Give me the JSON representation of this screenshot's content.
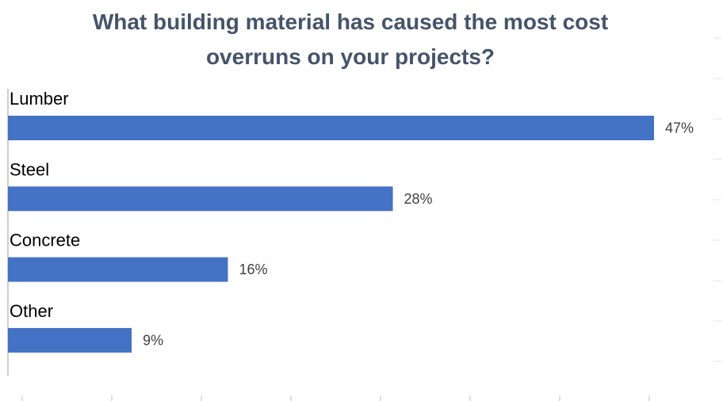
{
  "chart_data": {
    "type": "bar",
    "orientation": "horizontal",
    "title_lines": [
      "What building material has caused the most cost",
      "overruns on your projects?"
    ],
    "categories": [
      "Lumber",
      "Steel",
      "Concrete",
      "Other"
    ],
    "values": [
      47,
      28,
      16,
      9
    ],
    "value_labels": [
      "47%",
      "28%",
      "16%",
      "9%"
    ],
    "unit": "%",
    "xlim": [
      0,
      52
    ],
    "grid": false,
    "legend": "none",
    "colors": {
      "bar": "#4472c4",
      "axis": "#bfbfbf",
      "title": "#44546a",
      "value_label": "#404040"
    }
  }
}
